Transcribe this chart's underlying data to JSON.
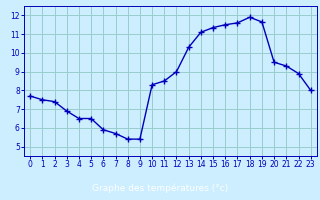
{
  "hours": [
    0,
    1,
    2,
    3,
    4,
    5,
    6,
    7,
    8,
    9,
    10,
    11,
    12,
    13,
    14,
    15,
    16,
    17,
    18,
    19,
    20,
    21,
    22,
    23
  ],
  "temperatures": [
    7.7,
    7.5,
    7.4,
    6.9,
    6.5,
    6.5,
    5.9,
    5.7,
    5.4,
    5.4,
    8.3,
    8.5,
    9.0,
    10.3,
    11.1,
    11.35,
    11.5,
    11.6,
    11.9,
    11.65,
    9.5,
    9.3,
    8.9,
    8.0
  ],
  "line_color": "#0000bb",
  "bg_color": "#cceeff",
  "grid_color": "#99cccc",
  "xlabel": "Graphe des températures (°c)",
  "xlim": [
    -0.5,
    23.5
  ],
  "ylim": [
    4.5,
    12.5
  ],
  "yticks": [
    5,
    6,
    7,
    8,
    9,
    10,
    11,
    12
  ],
  "xticks": [
    0,
    1,
    2,
    3,
    4,
    5,
    6,
    7,
    8,
    9,
    10,
    11,
    12,
    13,
    14,
    15,
    16,
    17,
    18,
    19,
    20,
    21,
    22,
    23
  ],
  "marker": "+",
  "markersize": 4,
  "linewidth": 1.0,
  "tick_fontsize": 5.5,
  "label_fontsize": 6.5
}
